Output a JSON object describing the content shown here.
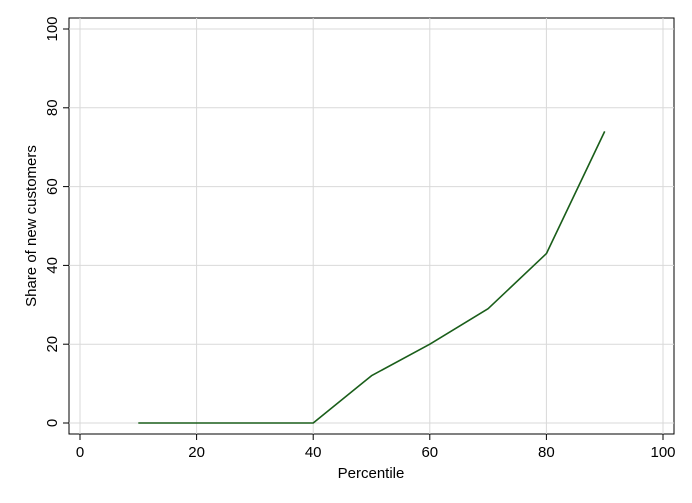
{
  "chart_data": {
    "type": "line",
    "xlabel": "Percentile",
    "ylabel": "Share of new customers",
    "xlim": [
      0,
      100
    ],
    "ylim": [
      0,
      100
    ],
    "x_ticks": [
      0,
      20,
      40,
      60,
      80,
      100
    ],
    "y_ticks": [
      0,
      20,
      40,
      60,
      80,
      100
    ],
    "grid": true,
    "series": [
      {
        "x": [
          10,
          20,
          30,
          40,
          50,
          60,
          70,
          80,
          90
        ],
        "y": [
          0,
          0,
          0,
          0,
          12,
          20,
          29,
          43,
          74
        ],
        "color": "#1a5e1a"
      }
    ],
    "colors": {
      "grid": "#d9d9d9",
      "axis": "#000000",
      "plot_background": "#ffffff"
    }
  }
}
